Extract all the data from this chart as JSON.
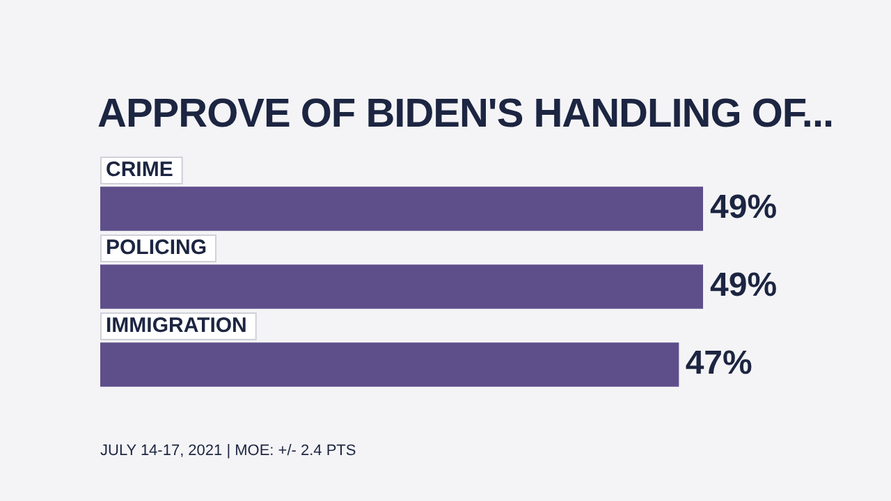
{
  "chart_data": {
    "type": "bar",
    "orientation": "horizontal",
    "title": "APPROVE OF BIDEN'S HANDLING OF...",
    "categories": [
      "CRIME",
      "POLICING",
      "IMMIGRATION"
    ],
    "values": [
      49,
      49,
      47
    ],
    "value_labels": [
      "49%",
      "49%",
      "47%"
    ],
    "color": "#5e4f8b",
    "annotations": [
      "JULY 14-17, 2021 | MOE: +/- 2.4 PTS"
    ]
  }
}
